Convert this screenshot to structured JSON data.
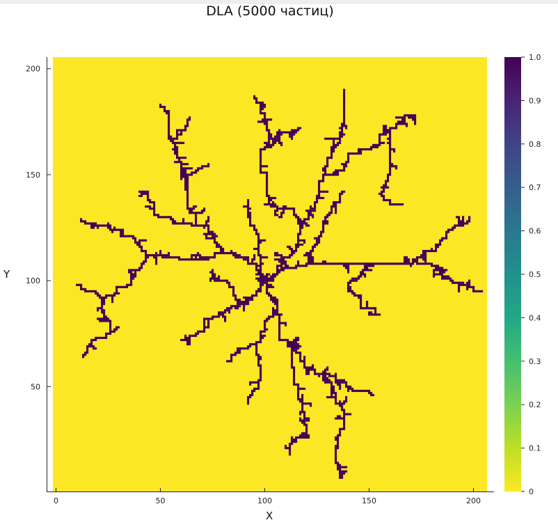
{
  "chart_data": {
    "type": "heatmap",
    "title": "DLA  (5000 частиц)",
    "xlabel": "X",
    "ylabel": "Y",
    "xlim": [
      -1.5,
      206.5
    ],
    "ylim": [
      0.5,
      205.5
    ],
    "x_ticks": [
      0,
      50,
      100,
      150,
      200
    ],
    "y_ticks": [
      50,
      100,
      150,
      200
    ],
    "colorbar": {
      "ticks": [
        0,
        0.1,
        0.2,
        0.3,
        0.4,
        0.5,
        0.6,
        0.7,
        0.8,
        0.9,
        1.0
      ],
      "tick_labels": [
        "0",
        "0.1",
        "0.2",
        "0.3",
        "0.4",
        "0.5",
        "0.6",
        "0.7",
        "0.8",
        "0.9",
        "1.0"
      ],
      "range": [
        0,
        1
      ],
      "colormap": "viridis"
    },
    "grid_size": [
      205,
      205
    ],
    "particles": 5000,
    "background_value": 0,
    "cluster_value": 1,
    "colors": {
      "empty": "#fde725",
      "occupied": "#440154"
    },
    "cluster_branches": [
      [
        [
          100,
          100
        ],
        [
          108,
          108
        ],
        [
          118,
          128
        ],
        [
          128,
          150
        ],
        [
          136,
          170
        ],
        [
          138,
          190
        ]
      ],
      [
        [
          128,
          150
        ],
        [
          148,
          162
        ],
        [
          160,
          172
        ],
        [
          172,
          178
        ]
      ],
      [
        [
          118,
          128
        ],
        [
          102,
          140
        ],
        [
          98,
          152
        ],
        [
          104,
          165
        ],
        [
          100,
          176
        ],
        [
          95,
          187
        ]
      ],
      [
        [
          104,
          165
        ],
        [
          117,
          172
        ]
      ],
      [
        [
          100,
          100
        ],
        [
          92,
          108
        ],
        [
          80,
          114
        ],
        [
          68,
          126
        ],
        [
          62,
          148
        ],
        [
          55,
          167
        ],
        [
          52,
          182
        ]
      ],
      [
        [
          68,
          126
        ],
        [
          50,
          130
        ],
        [
          40,
          142
        ]
      ],
      [
        [
          62,
          148
        ],
        [
          73,
          155
        ]
      ],
      [
        [
          55,
          167
        ],
        [
          64,
          177
        ]
      ],
      [
        [
          80,
          114
        ],
        [
          68,
          110
        ],
        [
          46,
          112
        ],
        [
          28,
          124
        ],
        [
          12,
          129
        ]
      ],
      [
        [
          46,
          112
        ],
        [
          36,
          100
        ],
        [
          22,
          92
        ],
        [
          10,
          98
        ]
      ],
      [
        [
          22,
          92
        ],
        [
          26,
          76
        ],
        [
          13,
          64
        ]
      ],
      [
        [
          100,
          100
        ],
        [
          120,
          108
        ],
        [
          150,
          108
        ],
        [
          172,
          110
        ],
        [
          188,
          102
        ],
        [
          204,
          95
        ]
      ],
      [
        [
          172,
          110
        ],
        [
          186,
          120
        ],
        [
          198,
          128
        ]
      ],
      [
        [
          150,
          108
        ],
        [
          140,
          98
        ],
        [
          155,
          84
        ]
      ],
      [
        [
          100,
          100
        ],
        [
          106,
          86
        ],
        [
          112,
          70
        ],
        [
          128,
          56
        ],
        [
          142,
          48
        ],
        [
          152,
          46
        ]
      ],
      [
        [
          128,
          56
        ],
        [
          138,
          36
        ],
        [
          134,
          16
        ],
        [
          136,
          7
        ]
      ],
      [
        [
          112,
          70
        ],
        [
          116,
          46
        ],
        [
          120,
          28
        ],
        [
          112,
          18
        ]
      ],
      [
        [
          100,
          100
        ],
        [
          88,
          88
        ],
        [
          74,
          82
        ],
        [
          60,
          72
        ]
      ],
      [
        [
          88,
          88
        ],
        [
          82,
          100
        ],
        [
          74,
          104
        ]
      ],
      [
        [
          106,
          86
        ],
        [
          96,
          70
        ],
        [
          98,
          54
        ],
        [
          92,
          42
        ]
      ],
      [
        [
          96,
          70
        ],
        [
          82,
          62
        ]
      ],
      [
        [
          120,
          108
        ],
        [
          128,
          128
        ],
        [
          138,
          142
        ]
      ],
      [
        [
          160,
          172
        ],
        [
          156,
          142
        ],
        [
          166,
          136
        ]
      ],
      [
        [
          100,
          100
        ],
        [
          96,
          124
        ],
        [
          92,
          138
        ]
      ]
    ]
  }
}
